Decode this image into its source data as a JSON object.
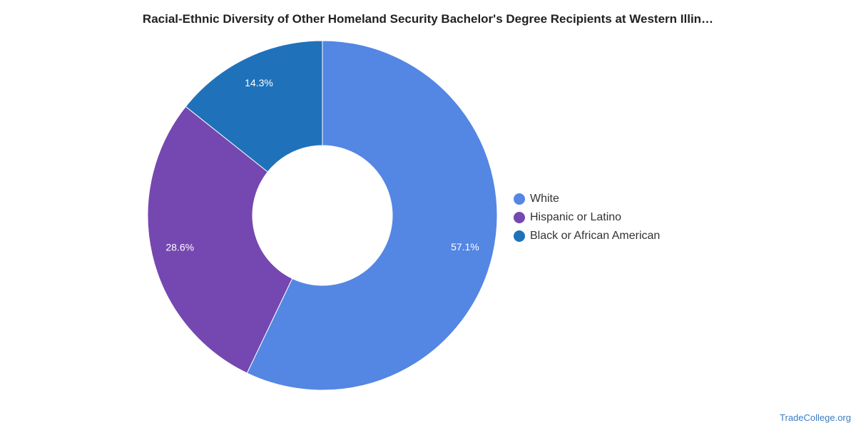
{
  "chart_data": {
    "type": "pie",
    "title": "Racial-Ethnic Diversity of Other Homeland Security Bachelor's Degree Recipients at Western Illin…",
    "categories": [
      "White",
      "Hispanic or Latino",
      "Black or African American"
    ],
    "values": [
      57.1,
      28.6,
      14.3
    ],
    "labels": [
      "57.1%",
      "28.6%",
      "14.3%"
    ],
    "colors": [
      "#5486e3",
      "#7547b0",
      "#1f72ba"
    ],
    "donut": true,
    "legend_position": "right"
  },
  "source": "TradeCollege.org"
}
